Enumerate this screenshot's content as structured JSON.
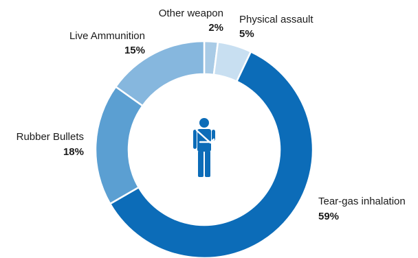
{
  "chart_data": {
    "type": "pie",
    "variant": "donut",
    "start": "top",
    "direction": "clockwise",
    "slices": [
      {
        "label": "Other weapon",
        "value": 2,
        "value_label": "2%",
        "color": "#a9cbe6"
      },
      {
        "label": "Physical assault",
        "value": 5,
        "value_label": "5%",
        "color": "#c8dff1"
      },
      {
        "label": "Tear-gas inhalation",
        "value": 59,
        "value_label": "59%",
        "color": "#0c6cb8"
      },
      {
        "label": "Rubber Bullets",
        "value": 18,
        "value_label": "18%",
        "color": "#5b9fd2"
      },
      {
        "label": "Live Ammunition",
        "value": 15,
        "value_label": "15%",
        "color": "#86b7de"
      }
    ],
    "center_icon": "injured-person-with-arm-sling-icon",
    "center_icon_color": "#0c6cb8"
  }
}
